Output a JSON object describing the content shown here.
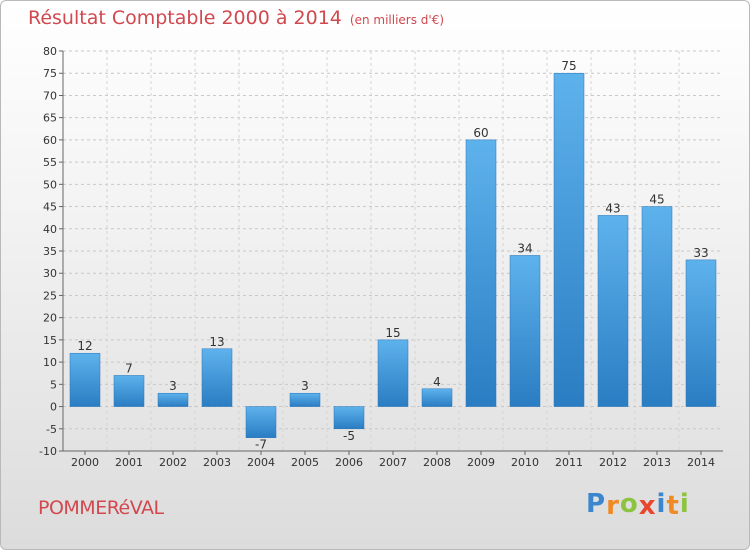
{
  "chart_data": {
    "type": "bar",
    "title": "Résultat Comptable 2000 à 2014",
    "unit": "(en milliers d'€)",
    "categories": [
      "2000",
      "2001",
      "2002",
      "2003",
      "2004",
      "2005",
      "2006",
      "2007",
      "2008",
      "2009",
      "2010",
      "2011",
      "2012",
      "2013",
      "2014"
    ],
    "values": [
      12,
      7,
      3,
      13,
      -7,
      3,
      -5,
      15,
      4,
      60,
      34,
      75,
      43,
      45,
      33
    ],
    "ylim": [
      -10,
      80
    ],
    "yticks": [
      -10,
      -5,
      0,
      5,
      10,
      15,
      20,
      25,
      30,
      35,
      40,
      45,
      50,
      55,
      60,
      65,
      70,
      75,
      80
    ],
    "grid": true,
    "bar_color": "#3d8fd3",
    "xlabel": "",
    "ylabel": ""
  },
  "commune": "POMMERéVAL",
  "brand": {
    "letters": [
      "P",
      "r",
      "o",
      "x",
      "i",
      "t",
      "i"
    ],
    "colors": [
      "#3a86cf",
      "#f08a24",
      "#8cc43f",
      "#e8462e",
      "#3a86cf",
      "#f08a24",
      "#8cc43f"
    ]
  }
}
